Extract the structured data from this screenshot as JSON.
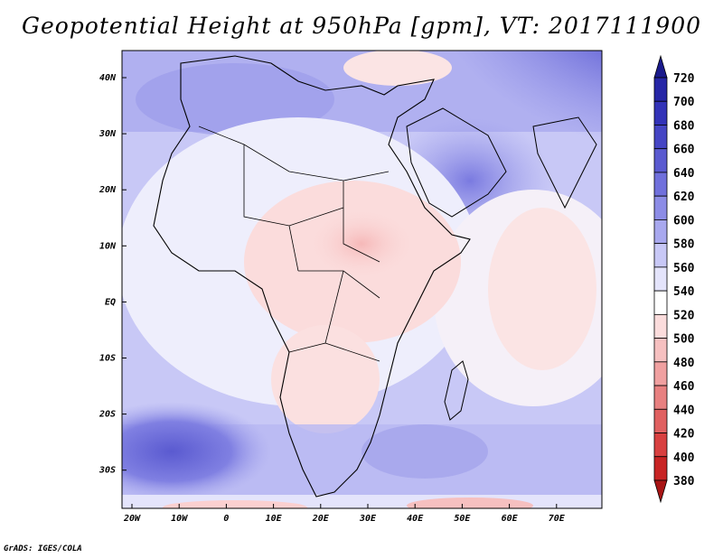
{
  "title": "Geopotential Height at 950hPa [gpm], VT: 2017111900",
  "credit": "GrADS: IGES/COLA",
  "map": {
    "lon_labels": [
      "20W",
      "10W",
      "0",
      "10E",
      "20E",
      "30E",
      "40E",
      "50E",
      "60E",
      "70E"
    ],
    "lat_labels": [
      "40N",
      "30N",
      "20N",
      "10N",
      "EQ",
      "10S",
      "20S",
      "30S"
    ]
  },
  "colorbar": {
    "levels": [
      "720",
      "700",
      "680",
      "660",
      "640",
      "620",
      "600",
      "580",
      "560",
      "540",
      "520",
      "500",
      "480",
      "460",
      "440",
      "420",
      "400",
      "380"
    ],
    "colors": [
      "#1a1a8c",
      "#2626a6",
      "#3333b8",
      "#4545c4",
      "#5a5ad0",
      "#7070dc",
      "#8c8ce6",
      "#a8a8ee",
      "#c8c8f6",
      "#e4e4fb",
      "#ffffff",
      "#fbdcdc",
      "#f6c0c0",
      "#f0a0a0",
      "#e88080",
      "#e06060",
      "#d84040",
      "#c82424",
      "#a81414"
    ]
  }
}
